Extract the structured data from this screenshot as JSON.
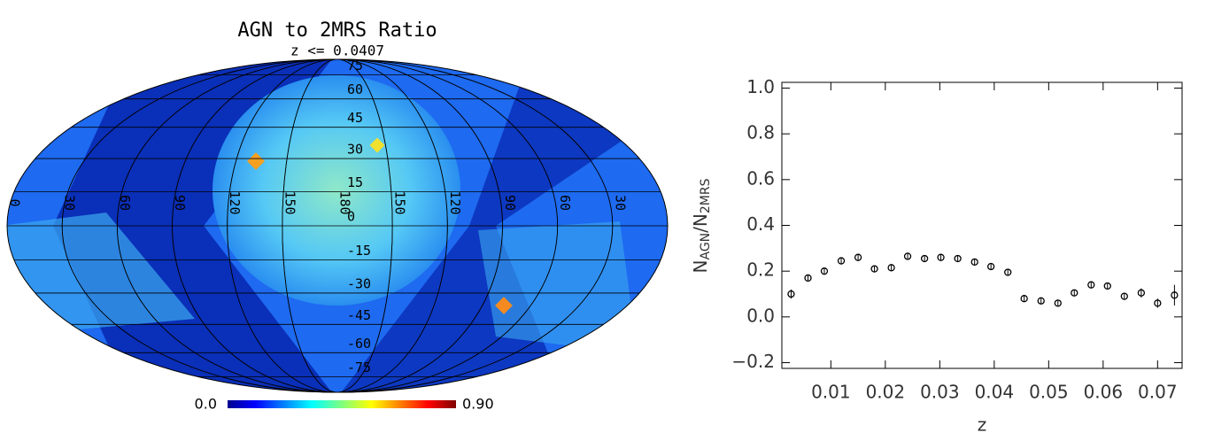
{
  "chart_data": [
    {
      "type": "map",
      "title": "AGN to 2MRS Ratio",
      "subtitle": "z <= 0.0407",
      "lat_labels": [
        75,
        60,
        45,
        30,
        15,
        0,
        -15,
        -30,
        -45,
        -60,
        -75
      ],
      "lon_labels": [
        0,
        30,
        60,
        90,
        120,
        150,
        180,
        150,
        120,
        90,
        60,
        30
      ],
      "colorbar_ticks": [
        {
          "value": 0,
          "label": "0.0"
        },
        {
          "value": 0.9,
          "label": "0.90"
        }
      ]
    },
    {
      "type": "scatter",
      "xlabel": "z",
      "ylabel": [
        "N",
        "AGN",
        "/N",
        "2MRS"
      ],
      "x": [
        0.0027,
        0.0058,
        0.0088,
        0.0119,
        0.015,
        0.018,
        0.0211,
        0.0241,
        0.0272,
        0.0302,
        0.0333,
        0.0364,
        0.0394,
        0.0425,
        0.0455,
        0.0486,
        0.0517,
        0.0547,
        0.0578,
        0.0608,
        0.0639,
        0.067,
        0.07,
        0.0731
      ],
      "values": [
        0.1,
        0.17,
        0.2,
        0.245,
        0.26,
        0.21,
        0.215,
        0.265,
        0.255,
        0.26,
        0.255,
        0.24,
        0.22,
        0.195,
        0.08,
        0.07,
        0.06,
        0.105,
        0.14,
        0.135,
        0.09,
        0.105,
        0.06,
        0.095
      ],
      "errors": [
        0.02,
        0.015,
        0.015,
        0.015,
        0.015,
        0.012,
        0.012,
        0.012,
        0.012,
        0.012,
        0.012,
        0.012,
        0.012,
        0.012,
        0.012,
        0.012,
        0.012,
        0.012,
        0.015,
        0.015,
        0.015,
        0.02,
        0.02,
        0.045
      ],
      "color": "#000000",
      "xlim": [
        0.001,
        0.0745
      ],
      "ylim": [
        -0.225,
        1.025
      ],
      "xticks": [
        0.01,
        0.02,
        0.03,
        0.04,
        0.05,
        0.06,
        0.07
      ],
      "yticks": [
        {
          "value": 1.0,
          "label": "1.0"
        },
        {
          "value": 0.8,
          "label": "0.8"
        },
        {
          "value": 0.6,
          "label": "0.6"
        },
        {
          "value": 0.4,
          "label": "0.4"
        },
        {
          "value": 0.2,
          "label": "0.2"
        },
        {
          "value": 0.0,
          "label": "0.0"
        },
        {
          "value": -0.2,
          "label": "−0.2"
        }
      ]
    }
  ]
}
